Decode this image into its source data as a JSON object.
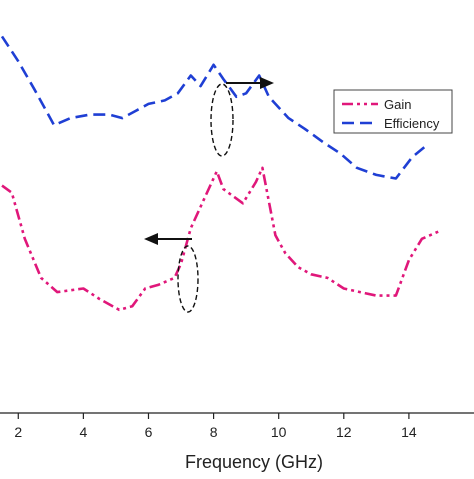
{
  "chart_data": {
    "type": "line",
    "title": "",
    "xlabel": "Frequency (GHz)",
    "ylabel": "",
    "xlim": [
      1.5,
      16
    ],
    "x_ticks": [
      2,
      4,
      6,
      8,
      10,
      12,
      14
    ],
    "x_tick_labels": [
      "2",
      "4",
      "6",
      "8",
      "10",
      "12",
      "14"
    ],
    "legend_position": "top-right",
    "grid": false,
    "series": [
      {
        "name": "Gain",
        "color": "#e0177a",
        "line_style": "dash-dot-dot",
        "axis": "left",
        "ylim": [
          0,
          100
        ],
        "x": [
          1.5,
          1.8,
          2.2,
          2.7,
          3.2,
          4.0,
          4.5,
          5.1,
          5.5,
          5.9,
          6.3,
          6.8,
          7.0,
          7.3,
          7.7,
          8.1,
          8.3,
          8.6,
          8.9,
          9.3,
          9.5,
          9.9,
          10.2,
          10.6,
          11.0,
          11.5,
          12.0,
          12.5,
          13.0,
          13.6,
          14.0,
          14.4,
          14.9
        ],
        "y": [
          59,
          57,
          44,
          33,
          29,
          30,
          27,
          24,
          25,
          30,
          31,
          33,
          37,
          47,
          55,
          63,
          58,
          56,
          54,
          60,
          64,
          45,
          40,
          36,
          34,
          33,
          30,
          29,
          28,
          28,
          38,
          44,
          46
        ]
      },
      {
        "name": "Efficiency",
        "color": "#1f3fd4",
        "line_style": "dashed",
        "axis": "right",
        "ylim": [
          0,
          100
        ],
        "x": [
          1.5,
          2.0,
          2.5,
          3.1,
          3.6,
          4.2,
          4.8,
          5.2,
          5.6,
          6.0,
          6.5,
          6.9,
          7.3,
          7.6,
          8.0,
          8.3,
          8.7,
          9.0,
          9.4,
          9.7,
          10.3,
          10.8,
          11.4,
          11.9,
          12.4,
          13.0,
          13.6,
          14.1,
          14.5
        ],
        "y": [
          101,
          94,
          86,
          76,
          78,
          79,
          79,
          78,
          80,
          82,
          83,
          85,
          90,
          87,
          93,
          89,
          84,
          85,
          90,
          84,
          78,
          75,
          71,
          68,
          64,
          62,
          61,
          67,
          70
        ]
      }
    ],
    "legend": [
      {
        "label": "Gain",
        "color": "#e0177a",
        "line_style": "dash-dot-dot"
      },
      {
        "label": "Efficiency",
        "color": "#1f3fd4",
        "line_style": "dashed"
      }
    ],
    "annotations": [
      {
        "type": "axis-arrow",
        "direction": "right",
        "points_to_axis": "right",
        "series": "Efficiency"
      },
      {
        "type": "axis-arrow",
        "direction": "left",
        "points_to_axis": "left",
        "series": "Gain"
      }
    ]
  }
}
